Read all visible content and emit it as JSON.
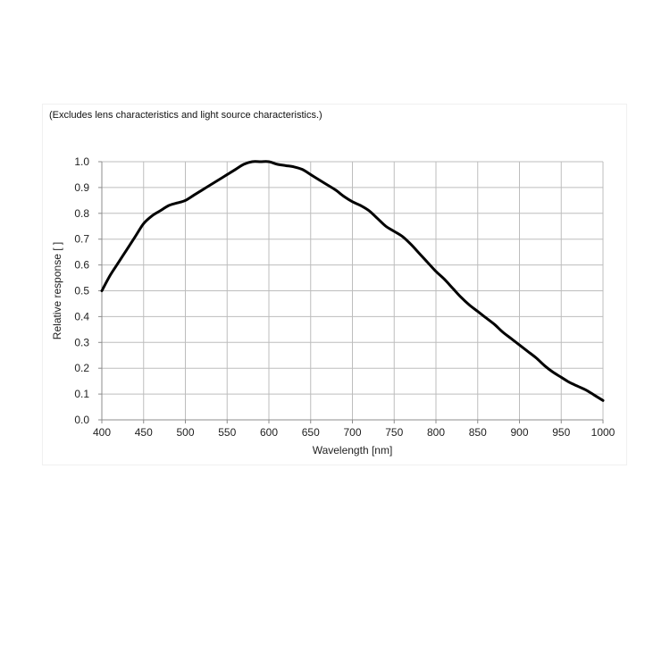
{
  "chart_data": {
    "type": "line",
    "annotation": "(Excludes lens characteristics and light source characteristics.)",
    "xlabel": "Wavelength [nm]",
    "ylabel": "Relative response [ ]",
    "xlim": [
      400,
      1000
    ],
    "ylim": [
      0.0,
      1.0
    ],
    "x_ticks": [
      "400",
      "450",
      "500",
      "550",
      "600",
      "650",
      "700",
      "750",
      "800",
      "850",
      "900",
      "950",
      "1000"
    ],
    "y_ticks": [
      "0.0",
      "0.1",
      "0.2",
      "0.3",
      "0.4",
      "0.5",
      "0.6",
      "0.7",
      "0.8",
      "0.9",
      "1.0"
    ],
    "grid": true,
    "series": [
      {
        "color": "#000000",
        "x": [
          400,
          410,
          420,
          430,
          440,
          450,
          460,
          470,
          480,
          490,
          500,
          510,
          520,
          530,
          540,
          550,
          560,
          570,
          580,
          590,
          600,
          610,
          620,
          630,
          640,
          650,
          660,
          670,
          680,
          690,
          700,
          710,
          720,
          730,
          740,
          750,
          760,
          770,
          780,
          790,
          800,
          810,
          820,
          830,
          840,
          850,
          860,
          870,
          880,
          890,
          900,
          910,
          920,
          930,
          940,
          950,
          960,
          970,
          980,
          990,
          1000
        ],
        "y": [
          0.5,
          0.56,
          0.61,
          0.66,
          0.71,
          0.76,
          0.79,
          0.81,
          0.83,
          0.84,
          0.85,
          0.87,
          0.89,
          0.91,
          0.93,
          0.95,
          0.97,
          0.99,
          1.0,
          1.0,
          1.0,
          0.99,
          0.985,
          0.98,
          0.97,
          0.95,
          0.93,
          0.91,
          0.89,
          0.865,
          0.845,
          0.83,
          0.81,
          0.78,
          0.75,
          0.73,
          0.71,
          0.68,
          0.645,
          0.61,
          0.575,
          0.545,
          0.51,
          0.475,
          0.445,
          0.42,
          0.395,
          0.37,
          0.34,
          0.315,
          0.29,
          0.265,
          0.24,
          0.21,
          0.185,
          0.165,
          0.145,
          0.13,
          0.115,
          0.095,
          0.075
        ]
      }
    ]
  }
}
